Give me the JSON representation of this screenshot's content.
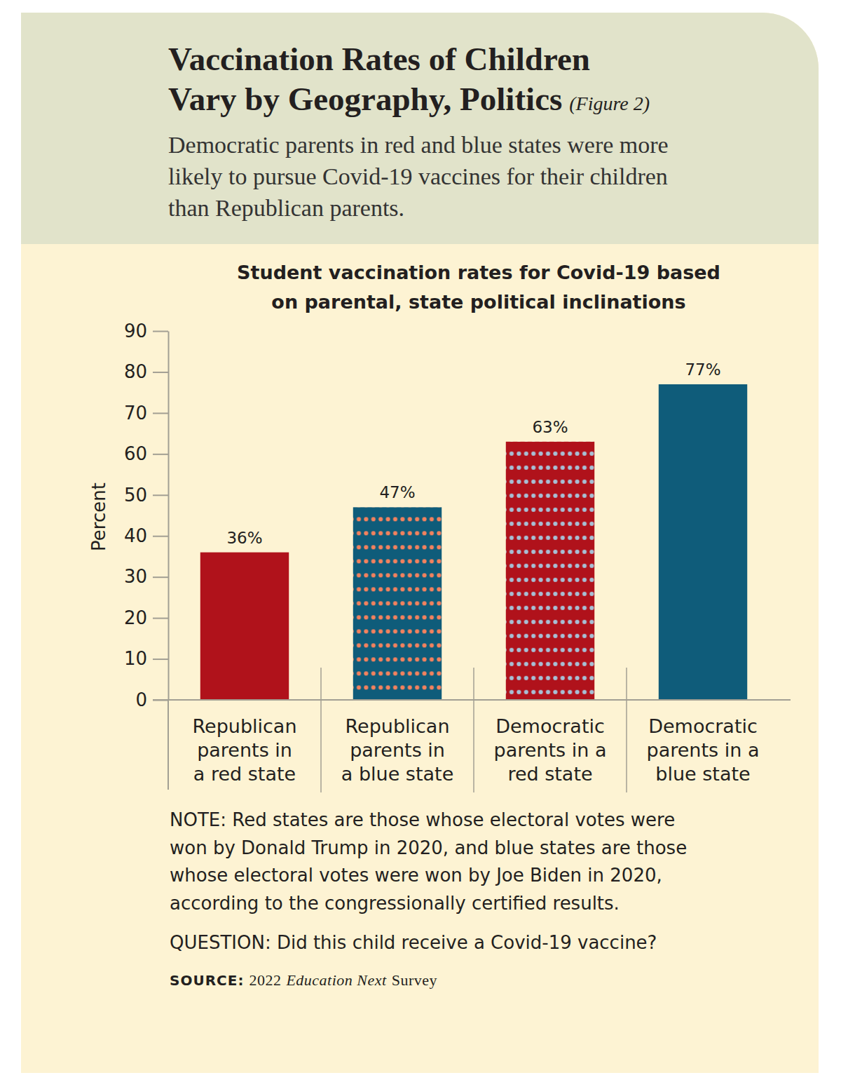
{
  "chart_data": {
    "type": "bar",
    "title": "Vaccination Rates of Children\nVary by Geography, Politics",
    "figure_label": "(Figure 2)",
    "subtitle": "Democratic parents in red and blue states were more\nlikely to pursue Covid-19 vaccines for their children\nthan Republican parents.",
    "chart_title": "Student vaccination rates for Covid-19 based\non parental, state political inclinations",
    "ylabel": "Percent",
    "categories": [
      "Republican\nparents in\na red state",
      "Republican\nparents in\na blue state",
      "Democratic\nparents in a\nred state",
      "Democratic\nparents in a\nblue state"
    ],
    "values": [
      36,
      47,
      63,
      77
    ],
    "value_labels": [
      "36%",
      "47%",
      "63%",
      "77%"
    ],
    "colors": [
      "#b0121b",
      "#0f5c7a",
      "#b0121b",
      "#0f5c7a"
    ],
    "data_labels": true,
    "grid": false,
    "ylim": [
      0,
      90
    ],
    "yticks": [
      0,
      10,
      20,
      30,
      40,
      50,
      60,
      70,
      80,
      90
    ],
    "notes": [
      "NOTE: Red states are those whose electoral votes were\nwon by Donald Trump in 2020, and blue states are those\nwhose electoral votes were won by Joe Biden in 2020,\naccording to the congressionally certified results.",
      "QUESTION: Did this child receive a Covid-19 vaccine?"
    ],
    "source": [
      "SOURCE:",
      "2022",
      "Education Next",
      "Survey"
    ]
  }
}
